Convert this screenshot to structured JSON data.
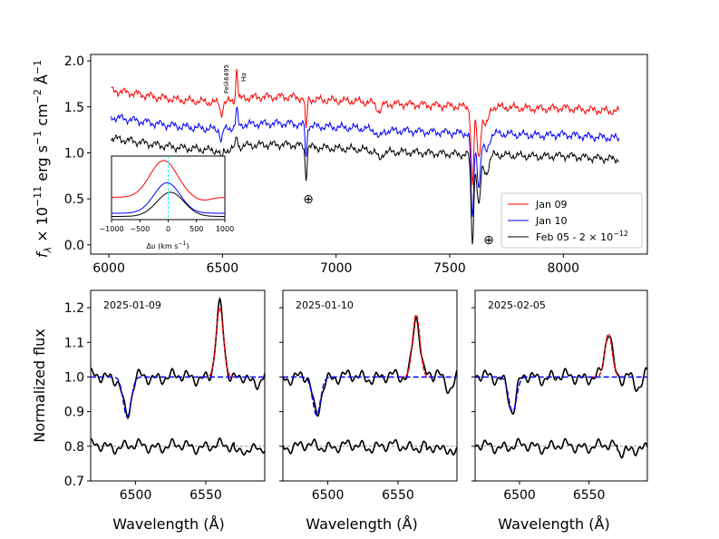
{
  "chart_data": [
    {
      "id": "top",
      "type": "line",
      "xlabel": "",
      "ylabel_parts": [
        "f",
        "λ",
        " × 10",
        "−11",
        " erg s",
        "−1",
        " cm",
        "−2",
        " Å",
        "−1"
      ],
      "xlim": [
        5920,
        8370
      ],
      "ylim": [
        -0.1,
        2.07
      ],
      "xticks": [
        6000,
        6500,
        7000,
        7500,
        8000
      ],
      "yticks": [
        0.0,
        0.5,
        1.0,
        1.5,
        2.0
      ],
      "ytick_labels": [
        "0.0",
        "0.5",
        "1.0",
        "1.5",
        "2.0"
      ],
      "annotations": {
        "fe": "FeIλ6495",
        "ha": "Hα",
        "telluric1": "⊕",
        "telluric2": "⊕"
      },
      "series": [
        {
          "name": "Jan 09",
          "color": "#ff0000",
          "offset": 0.52
        },
        {
          "name": "Jan 10",
          "color": "#0000ff",
          "offset": 0.23
        },
        {
          "name": "Feb 05 - 2 × 10",
          "name_sup": "−12",
          "color": "#000000",
          "offset": 0.0
        }
      ],
      "base_points": [
        [
          6010,
          1.16
        ],
        [
          6100,
          1.13
        ],
        [
          6200,
          1.09
        ],
        [
          6300,
          1.06
        ],
        [
          6400,
          1.04
        ],
        [
          6500,
          1.02
        ],
        [
          6600,
          1.08
        ],
        [
          6700,
          1.09
        ],
        [
          6800,
          1.09
        ],
        [
          6900,
          1.06
        ],
        [
          7000,
          1.05
        ],
        [
          7100,
          1.04
        ],
        [
          7200,
          1.01
        ],
        [
          7300,
          1.01
        ],
        [
          7400,
          1.0
        ],
        [
          7500,
          0.99
        ],
        [
          7590,
          0.98
        ],
        [
          7700,
          0.98
        ],
        [
          7800,
          0.97
        ],
        [
          7900,
          0.96
        ],
        [
          8000,
          0.97
        ],
        [
          8100,
          0.95
        ],
        [
          8245,
          0.93
        ]
      ],
      "features": [
        {
          "type": "abs",
          "center": 6495,
          "depth": 0.12,
          "width": 5
        },
        {
          "type": "em",
          "center": 6563,
          "amp": 0.35,
          "width": 4
        },
        {
          "type": "abs",
          "center": 6868,
          "depth": 0.35,
          "width": 4
        },
        {
          "type": "abs",
          "center": 7190,
          "depth": 0.08,
          "width": 10
        },
        {
          "type": "abs",
          "center": 7600,
          "depth": 0.95,
          "width": 6
        },
        {
          "type": "abs",
          "center": 7628,
          "depth": 0.55,
          "width": 8
        },
        {
          "type": "abs",
          "center": 7660,
          "depth": 0.2,
          "width": 12
        }
      ]
    },
    {
      "id": "inset",
      "type": "line",
      "xlabel": "Δυ (km s",
      "xlabel_sup": "−1",
      "xlabel_end": ")",
      "xlim": [
        -1000,
        1000
      ],
      "ylim": [
        0,
        1
      ],
      "xticks": [
        -1000,
        -500,
        0,
        500,
        1000
      ],
      "xtick_labels": [
        "−1000",
        "−500",
        "0",
        "500",
        "1000"
      ],
      "series": [
        {
          "name": "Jan 09",
          "color": "#ff0000",
          "base": 0.35,
          "amp": 0.58,
          "center": -80,
          "sigma": 240
        },
        {
          "name": "Jan 10",
          "color": "#0000ff",
          "base": 0.1,
          "amp": 0.48,
          "center": -20,
          "sigma": 230
        },
        {
          "name": "Feb 05",
          "color": "#000000",
          "base": 0.05,
          "amp": 0.38,
          "center": 40,
          "sigma": 240
        }
      ],
      "vline": 0,
      "vline_color": "#00ffff"
    },
    {
      "id": "bottom",
      "type": "line",
      "ylabel": "Normalized flux",
      "xlabel": "Wavelength (Å)",
      "xlim": [
        6468,
        6592
      ],
      "ylim": [
        0.7,
        1.25
      ],
      "xticks": [
        6500,
        6550
      ],
      "xtick_labels": [
        "6500",
        "6550"
      ],
      "yticks": [
        0.7,
        0.8,
        0.9,
        1.0,
        1.1,
        1.2
      ],
      "ytick_labels": [
        "0.7",
        "0.8",
        "0.9",
        "1.0",
        "1.1",
        "1.2"
      ],
      "reference_lines": [
        1.0,
        0.8
      ],
      "panels": [
        {
          "label": "2025-01-09",
          "abs_center": 6494,
          "abs_depth": 0.115,
          "em_center": 6560,
          "em_amp": 0.2
        },
        {
          "label": "2025-01-10",
          "abs_center": 6492,
          "abs_depth": 0.11,
          "em_center": 6563,
          "em_amp": 0.18
        },
        {
          "label": "2025-02-05",
          "abs_center": 6495,
          "abs_depth": 0.1,
          "em_center": 6564,
          "em_amp": 0.125
        }
      ]
    }
  ]
}
